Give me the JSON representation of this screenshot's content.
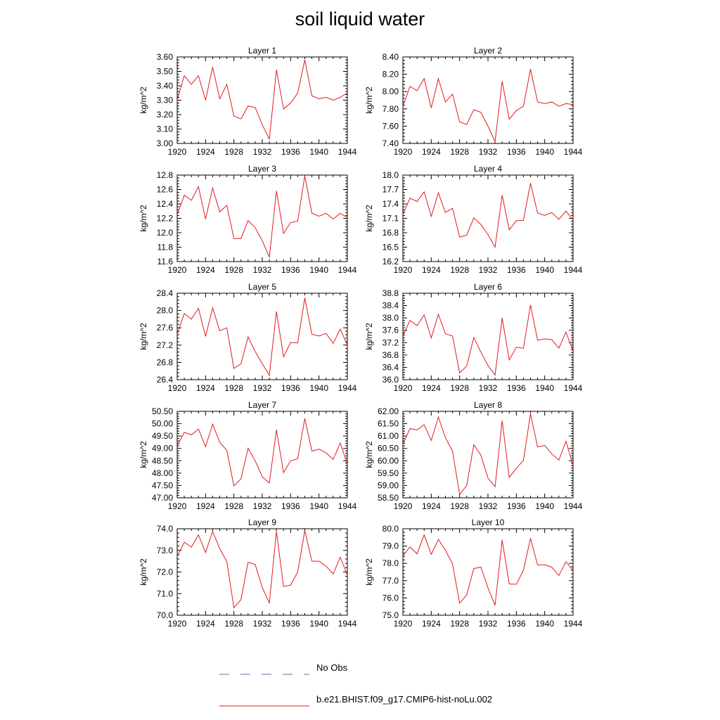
{
  "figure": {
    "title": "soil liquid water"
  },
  "legend": {
    "entries": [
      {
        "label": "No Obs",
        "color": "#6a6ab8",
        "dash": "dashed"
      },
      {
        "label": "b.e21.BHIST.f09_g17.CMIP6-hist-noLu.002",
        "color": "#e41a1c",
        "dash": "solid"
      }
    ]
  },
  "chart_data": [
    {
      "type": "line",
      "title": "Layer 1",
      "ylabel": "kg/m^2",
      "xlim": [
        1920,
        1944
      ],
      "ylim": [
        3.0,
        3.6
      ],
      "xticks": [
        "1920",
        "1924",
        "1928",
        "1932",
        "1936",
        "1940",
        "1944"
      ],
      "yticks": [
        "3.00",
        "3.10",
        "3.20",
        "3.30",
        "3.40",
        "3.50",
        "3.60"
      ],
      "series": [
        {
          "color": "#e41a1c",
          "x": [
            1920,
            1921,
            1922,
            1923,
            1924,
            1925,
            1926,
            1927,
            1928,
            1929,
            1930,
            1931,
            1932,
            1933,
            1934,
            1935,
            1936,
            1937,
            1938,
            1939,
            1940,
            1941,
            1942,
            1943,
            1944
          ],
          "values": [
            3.3,
            3.47,
            3.41,
            3.47,
            3.3,
            3.53,
            3.31,
            3.41,
            3.19,
            3.17,
            3.26,
            3.25,
            3.13,
            3.03,
            3.51,
            3.24,
            3.28,
            3.35,
            3.58,
            3.33,
            3.31,
            3.32,
            3.3,
            3.32,
            3.35
          ]
        }
      ]
    },
    {
      "type": "line",
      "title": "Layer 2",
      "ylabel": "kg/m^2",
      "xlim": [
        1920,
        1944
      ],
      "ylim": [
        7.4,
        8.4
      ],
      "xticks": [
        "1920",
        "1924",
        "1928",
        "1932",
        "1936",
        "1940",
        "1944"
      ],
      "yticks": [
        "7.40",
        "7.60",
        "7.80",
        "8.00",
        "8.20",
        "8.40"
      ],
      "series": [
        {
          "color": "#e41a1c",
          "x": [
            1920,
            1921,
            1922,
            1923,
            1924,
            1925,
            1926,
            1927,
            1928,
            1929,
            1930,
            1931,
            1932,
            1933,
            1934,
            1935,
            1936,
            1937,
            1938,
            1939,
            1940,
            1941,
            1942,
            1943,
            1944
          ],
          "values": [
            7.83,
            8.06,
            8.01,
            8.15,
            7.81,
            8.15,
            7.88,
            7.97,
            7.65,
            7.62,
            7.79,
            7.76,
            7.6,
            7.42,
            8.12,
            7.68,
            7.78,
            7.83,
            8.26,
            7.88,
            7.86,
            7.88,
            7.83,
            7.86,
            7.85
          ]
        }
      ]
    },
    {
      "type": "line",
      "title": "Layer 3",
      "ylabel": "kg/m^2",
      "xlim": [
        1920,
        1944
      ],
      "ylim": [
        11.6,
        12.8
      ],
      "xticks": [
        "1920",
        "1924",
        "1928",
        "1932",
        "1936",
        "1940",
        "1944"
      ],
      "yticks": [
        "11.6",
        "11.8",
        "12.0",
        "12.2",
        "12.4",
        "12.6",
        "12.8"
      ],
      "series": [
        {
          "color": "#e41a1c",
          "x": [
            1920,
            1921,
            1922,
            1923,
            1924,
            1925,
            1926,
            1927,
            1928,
            1929,
            1930,
            1931,
            1932,
            1933,
            1934,
            1935,
            1936,
            1937,
            1938,
            1939,
            1940,
            1941,
            1942,
            1943,
            1944
          ],
          "values": [
            12.25,
            12.52,
            12.45,
            12.64,
            12.19,
            12.62,
            12.29,
            12.38,
            11.92,
            11.92,
            12.17,
            12.07,
            11.89,
            11.66,
            12.58,
            11.99,
            12.14,
            12.16,
            12.79,
            12.27,
            12.23,
            12.27,
            12.19,
            12.27,
            12.21
          ]
        }
      ]
    },
    {
      "type": "line",
      "title": "Layer 4",
      "ylabel": "kg/m^2",
      "xlim": [
        1920,
        1944
      ],
      "ylim": [
        16.2,
        18.0
      ],
      "xticks": [
        "1920",
        "1924",
        "1928",
        "1932",
        "1936",
        "1940",
        "1944"
      ],
      "yticks": [
        "16.2",
        "16.5",
        "16.8",
        "17.1",
        "17.4",
        "17.7",
        "18.0"
      ],
      "series": [
        {
          "color": "#e41a1c",
          "x": [
            1920,
            1921,
            1922,
            1923,
            1924,
            1925,
            1926,
            1927,
            1928,
            1929,
            1930,
            1931,
            1932,
            1933,
            1934,
            1935,
            1936,
            1937,
            1938,
            1939,
            1940,
            1941,
            1942,
            1943,
            1944
          ],
          "values": [
            17.18,
            17.52,
            17.45,
            17.65,
            17.14,
            17.63,
            17.22,
            17.31,
            16.71,
            16.75,
            17.11,
            16.97,
            16.76,
            16.5,
            17.58,
            16.86,
            17.05,
            17.06,
            17.83,
            17.21,
            17.16,
            17.22,
            17.08,
            17.25,
            17.07
          ]
        }
      ]
    },
    {
      "type": "line",
      "title": "Layer 5",
      "ylabel": "kg/m^2",
      "xlim": [
        1920,
        1944
      ],
      "ylim": [
        26.4,
        28.4
      ],
      "xticks": [
        "1920",
        "1924",
        "1928",
        "1932",
        "1936",
        "1940",
        "1944"
      ],
      "yticks": [
        "26.4",
        "26.8",
        "27.2",
        "27.6",
        "28.0",
        "28.4"
      ],
      "series": [
        {
          "color": "#e41a1c",
          "x": [
            1920,
            1921,
            1922,
            1923,
            1924,
            1925,
            1926,
            1927,
            1928,
            1929,
            1930,
            1931,
            1932,
            1933,
            1934,
            1935,
            1936,
            1937,
            1938,
            1939,
            1940,
            1941,
            1942,
            1943,
            1944
          ],
          "values": [
            27.45,
            27.93,
            27.8,
            28.05,
            27.4,
            28.06,
            27.53,
            27.6,
            26.66,
            26.77,
            27.39,
            27.05,
            26.77,
            26.5,
            27.98,
            26.93,
            27.26,
            27.25,
            28.29,
            27.45,
            27.41,
            27.47,
            27.24,
            27.57,
            27.2
          ]
        }
      ]
    },
    {
      "type": "line",
      "title": "Layer 6",
      "ylabel": "kg/m^2",
      "xlim": [
        1920,
        1944
      ],
      "ylim": [
        36.0,
        38.8
      ],
      "xticks": [
        "1920",
        "1924",
        "1928",
        "1932",
        "1936",
        "1940",
        "1944"
      ],
      "yticks": [
        "36.0",
        "36.4",
        "36.8",
        "37.2",
        "37.6",
        "38.0",
        "38.4",
        "38.8"
      ],
      "series": [
        {
          "color": "#e41a1c",
          "x": [
            1920,
            1921,
            1922,
            1923,
            1924,
            1925,
            1926,
            1927,
            1928,
            1929,
            1930,
            1931,
            1932,
            1933,
            1934,
            1935,
            1936,
            1937,
            1938,
            1939,
            1940,
            1941,
            1942,
            1943,
            1944
          ],
          "values": [
            37.42,
            37.92,
            37.75,
            38.1,
            37.35,
            38.12,
            37.48,
            37.42,
            36.22,
            36.44,
            37.37,
            36.89,
            36.46,
            36.15,
            38.0,
            36.64,
            37.05,
            37.02,
            38.42,
            37.28,
            37.32,
            37.3,
            37.02,
            37.54,
            36.92
          ]
        }
      ]
    },
    {
      "type": "line",
      "title": "Layer 7",
      "ylabel": "kg/m^2",
      "xlim": [
        1920,
        1944
      ],
      "ylim": [
        47.0,
        50.5
      ],
      "xticks": [
        "1920",
        "1924",
        "1928",
        "1932",
        "1936",
        "1940",
        "1944"
      ],
      "yticks": [
        "47.00",
        "47.50",
        "48.00",
        "48.50",
        "49.00",
        "49.50",
        "50.00",
        "50.50"
      ],
      "series": [
        {
          "color": "#e41a1c",
          "x": [
            1920,
            1921,
            1922,
            1923,
            1924,
            1925,
            1926,
            1927,
            1928,
            1929,
            1930,
            1931,
            1932,
            1933,
            1934,
            1935,
            1936,
            1937,
            1938,
            1939,
            1940,
            1941,
            1942,
            1943,
            1944
          ],
          "values": [
            49.1,
            49.65,
            49.55,
            49.78,
            49.07,
            49.98,
            49.25,
            48.92,
            47.48,
            47.77,
            49.01,
            48.5,
            47.85,
            47.6,
            49.75,
            48.02,
            48.5,
            48.58,
            50.21,
            48.89,
            48.97,
            48.82,
            48.55,
            49.22,
            48.35
          ]
        }
      ]
    },
    {
      "type": "line",
      "title": "Layer 8",
      "ylabel": "kg/m^2",
      "xlim": [
        1920,
        1944
      ],
      "ylim": [
        58.5,
        62.0
      ],
      "xticks": [
        "1920",
        "1924",
        "1928",
        "1932",
        "1936",
        "1940",
        "1944"
      ],
      "yticks": [
        "58.50",
        "59.00",
        "59.50",
        "60.00",
        "60.50",
        "61.00",
        "61.50",
        "62.00"
      ],
      "series": [
        {
          "color": "#e41a1c",
          "x": [
            1920,
            1921,
            1922,
            1923,
            1924,
            1925,
            1926,
            1927,
            1928,
            1929,
            1930,
            1931,
            1932,
            1933,
            1934,
            1935,
            1936,
            1937,
            1938,
            1939,
            1940,
            1941,
            1942,
            1943,
            1944
          ],
          "values": [
            60.67,
            61.3,
            61.25,
            61.46,
            60.82,
            61.77,
            60.93,
            60.39,
            58.63,
            59.0,
            60.65,
            60.23,
            59.3,
            58.95,
            61.62,
            59.33,
            59.69,
            60.02,
            61.9,
            60.56,
            60.62,
            60.28,
            60.03,
            60.79,
            59.8
          ]
        }
      ]
    },
    {
      "type": "line",
      "title": "Layer 9",
      "ylabel": "kg/m^2",
      "xlim": [
        1920,
        1944
      ],
      "ylim": [
        70.0,
        74.0
      ],
      "xticks": [
        "1920",
        "1924",
        "1928",
        "1932",
        "1936",
        "1940",
        "1944"
      ],
      "yticks": [
        "70.0",
        "71.0",
        "72.0",
        "73.0",
        "74.0"
      ],
      "series": [
        {
          "color": "#e41a1c",
          "x": [
            1920,
            1921,
            1922,
            1923,
            1924,
            1925,
            1926,
            1927,
            1928,
            1929,
            1930,
            1931,
            1932,
            1933,
            1934,
            1935,
            1936,
            1937,
            1938,
            1939,
            1940,
            1941,
            1942,
            1943,
            1944
          ],
          "values": [
            72.72,
            73.38,
            73.15,
            73.72,
            72.9,
            73.88,
            73.08,
            72.48,
            70.35,
            70.72,
            72.45,
            72.35,
            71.28,
            70.57,
            73.88,
            71.33,
            71.39,
            72.0,
            73.92,
            72.5,
            72.5,
            72.27,
            71.91,
            72.68,
            71.85
          ]
        }
      ]
    },
    {
      "type": "line",
      "title": "Layer 10",
      "ylabel": "kg/m^2",
      "xlim": [
        1920,
        1944
      ],
      "ylim": [
        75.0,
        80.0
      ],
      "xticks": [
        "1920",
        "1924",
        "1928",
        "1932",
        "1936",
        "1940",
        "1944"
      ],
      "yticks": [
        "75.0",
        "76.0",
        "77.0",
        "78.0",
        "79.0",
        "80.0"
      ],
      "series": [
        {
          "color": "#e41a1c",
          "x": [
            1920,
            1921,
            1922,
            1923,
            1924,
            1925,
            1926,
            1927,
            1928,
            1929,
            1930,
            1931,
            1932,
            1933,
            1934,
            1935,
            1936,
            1937,
            1938,
            1939,
            1940,
            1941,
            1942,
            1943,
            1944
          ],
          "values": [
            78.42,
            78.95,
            78.55,
            79.65,
            78.52,
            79.38,
            78.76,
            77.97,
            75.7,
            76.17,
            77.7,
            77.78,
            76.59,
            75.57,
            79.35,
            76.81,
            76.79,
            77.6,
            79.45,
            77.9,
            77.92,
            77.78,
            77.3,
            78.1,
            77.58
          ]
        }
      ]
    }
  ]
}
